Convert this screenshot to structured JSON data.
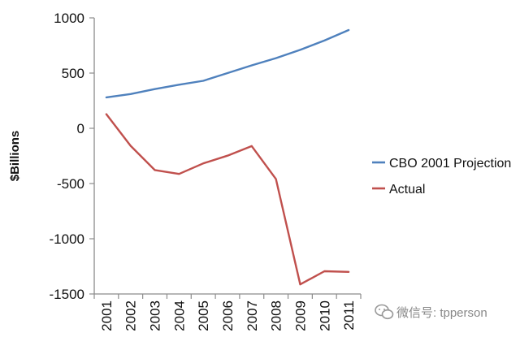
{
  "chart_data": {
    "type": "line",
    "title": "",
    "xlabel": "",
    "ylabel": "$Billions",
    "x": [
      "2001",
      "2002",
      "2003",
      "2004",
      "2005",
      "2006",
      "2007",
      "2008",
      "2009",
      "2010",
      "2011"
    ],
    "x_tick_labels": [
      "2001",
      "2002",
      "2003",
      "2004",
      "2005",
      "2006",
      "2007",
      "2008",
      "2009",
      "2010",
      "2011"
    ],
    "ylim": [
      -1500,
      1000
    ],
    "y_ticks": [
      1000,
      500,
      0,
      -500,
      -1000,
      -1500
    ],
    "y_tick_labels": [
      "1000",
      "500",
      "0",
      "-500",
      "-1000",
      "-1500"
    ],
    "grid": false,
    "legend_position": "right",
    "series": [
      {
        "name": "CBO 2001 Projection",
        "color": "#4f81bd",
        "values": [
          280,
          310,
          355,
          395,
          430,
          500,
          570,
          635,
          710,
          795,
          890
        ]
      },
      {
        "name": "Actual",
        "color": "#c0504d",
        "values": [
          128,
          -158,
          -378,
          -413,
          -318,
          -248,
          -161,
          -459,
          -1413,
          -1294,
          -1300
        ]
      }
    ]
  },
  "watermark": {
    "icon": "wechat-icon",
    "text": "微信号: tpperson"
  }
}
